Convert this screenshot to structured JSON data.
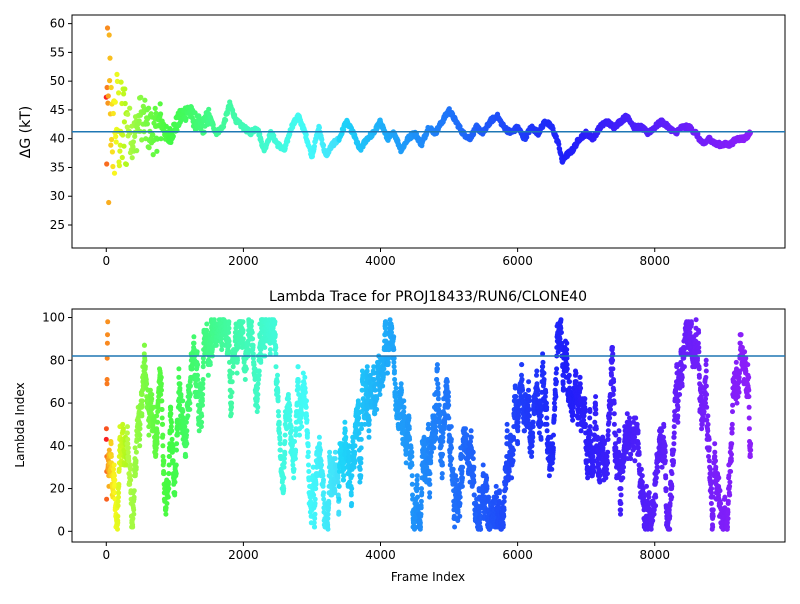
{
  "chart_data": [
    {
      "type": "scatter",
      "title": "",
      "xlabel": "",
      "ylabel": "ΔG (kT)",
      "xlim": [
        -500,
        9900
      ],
      "ylim": [
        21,
        61.5
      ],
      "xticks": [
        0,
        2000,
        4000,
        6000,
        8000
      ],
      "yticks": [
        25,
        30,
        35,
        40,
        45,
        50,
        55,
        60
      ],
      "hline": 41.2,
      "hline_color": "#1f77b4",
      "colormap": "rainbow (red at early frames → violet at late frames)",
      "n_frames": 9400,
      "series": [
        {
          "x": [
            0,
            10,
            20,
            40,
            60,
            80,
            100,
            150,
            200,
            300,
            400,
            500,
            600,
            700,
            800,
            900,
            1000,
            1100,
            1200,
            1300,
            1400,
            1500,
            1600,
            1700,
            1800,
            1900,
            2000,
            2100,
            2200,
            2300,
            2400,
            2500,
            2600,
            2700,
            2800,
            2900,
            3000,
            3100,
            3200,
            3300,
            3400,
            3500,
            3600,
            3700,
            3800,
            3900,
            4000,
            4100,
            4200,
            4300,
            4400,
            4500,
            4600,
            4700,
            4800,
            4900,
            5000,
            5100,
            5200,
            5300,
            5400,
            5500,
            5600,
            5700,
            5800,
            5900,
            6000,
            6100,
            6200,
            6300,
            6400,
            6500,
            6600,
            6650,
            6700,
            6800,
            6900,
            7000,
            7100,
            7200,
            7300,
            7400,
            7500,
            7600,
            7700,
            7800,
            7900,
            8000,
            8100,
            8200,
            8300,
            8400,
            8500,
            8600,
            8700,
            8800,
            8900,
            9000,
            9100,
            9200,
            9300,
            9400
          ],
          "y": [
            41,
            45,
            38,
            43,
            40,
            46,
            39,
            44,
            41,
            43,
            40,
            44,
            42,
            41,
            43,
            40,
            42,
            44,
            45,
            43,
            42,
            44,
            41,
            42,
            46,
            43,
            42,
            41,
            42,
            38,
            41,
            39,
            38,
            42,
            44,
            41,
            37,
            42,
            37,
            39,
            40,
            43,
            41,
            38,
            40,
            41,
            43,
            40,
            41,
            38,
            40,
            41,
            39,
            42,
            41,
            43,
            45,
            43,
            41,
            40,
            42,
            41,
            43,
            44,
            42,
            41,
            42,
            40,
            42,
            41,
            43,
            42,
            39,
            36,
            37,
            38,
            40,
            41,
            40,
            42,
            43,
            42,
            43,
            44,
            42,
            42,
            41,
            42,
            43,
            42,
            41,
            42,
            42,
            41,
            39,
            40,
            39,
            39,
            39,
            40,
            40,
            41
          ]
        }
      ]
    },
    {
      "type": "scatter",
      "title": "Lambda Trace for PROJ18433/RUN6/CLONE40",
      "xlabel": "Frame Index",
      "ylabel": "Lambda Index",
      "xlim": [
        -500,
        9900
      ],
      "ylim": [
        -5,
        104
      ],
      "xticks": [
        0,
        2000,
        4000,
        6000,
        8000
      ],
      "yticks": [
        0,
        20,
        40,
        60,
        80,
        100
      ],
      "hline": 82,
      "hline_color": "#1f77b4",
      "colormap": "rainbow (red at early frames → violet at late frames)",
      "n_frames": 9400,
      "lambda_range": [
        1,
        99
      ]
    }
  ]
}
